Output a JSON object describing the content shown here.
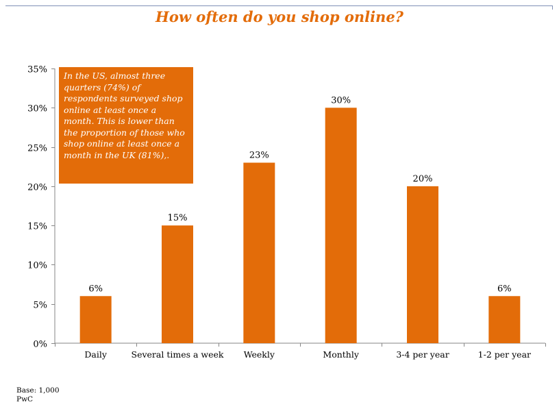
{
  "title": "How often do you shop online?",
  "callout_text": "In the US, almost three quarters (74%) of respondents surveyed shop online at least once a month. This is lower than the proportion of those who shop online at least once a month in the UK (81%),.",
  "footer": {
    "base": "Base: 1,000",
    "source": "PwC"
  },
  "colors": {
    "bar": "#e36c09",
    "title": "#e36c09",
    "axis": "#868686"
  },
  "chart_data": {
    "type": "bar",
    "title": "How often do you shop online?",
    "categories": [
      "Daily",
      "Several times a week",
      "Weekly",
      "Monthly",
      "3-4 per year",
      "1-2 per year"
    ],
    "values": [
      6,
      15,
      23,
      30,
      20,
      6
    ],
    "data_labels": [
      "6%",
      "15%",
      "23%",
      "30%",
      "20%",
      "6%"
    ],
    "ylim": [
      0,
      35
    ],
    "yticks": [
      0,
      5,
      10,
      15,
      20,
      25,
      30,
      35
    ],
    "ytick_labels": [
      "0%",
      "5%",
      "10%",
      "15%",
      "20%",
      "25%",
      "30%",
      "35%"
    ],
    "xlabel": "",
    "ylabel": "",
    "grid": false,
    "legend": "none"
  }
}
